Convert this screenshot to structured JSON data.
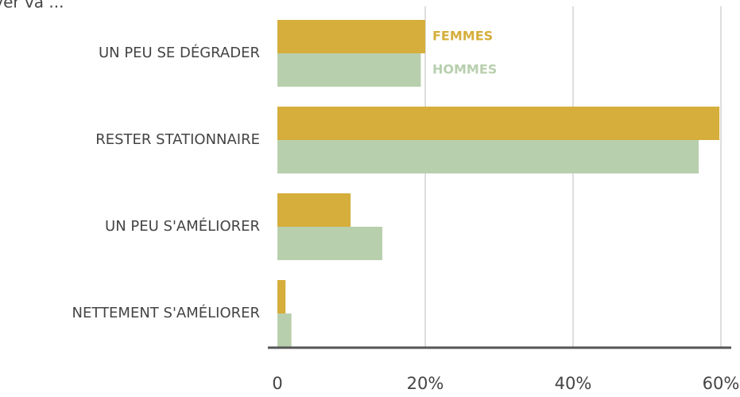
{
  "chart_data": {
    "type": "bar",
    "orientation": "horizontal",
    "title": "oyer va ...",
    "categories": [
      "UN PEU SE DÉGRADER",
      "RESTER STATIONNAIRE",
      "UN PEU S'AMÉLIORER",
      "NETTEMENT S'AMÉLIORER"
    ],
    "series": [
      {
        "name": "FEMMES",
        "color": "#d5ae3b",
        "values": [
          20,
          59.8,
          9.9,
          1.1
        ]
      },
      {
        "name": "HOMMES",
        "color": "#b8cfae",
        "values": [
          19.4,
          57,
          14.2,
          1.9
        ]
      }
    ],
    "xlim": [
      0,
      60
    ],
    "xticks": [
      0,
      {
        "value": 20,
        "label": "20%"
      },
      {
        "value": 40,
        "label": "40%"
      },
      {
        "value": 60,
        "label": "60%"
      }
    ],
    "grid": true,
    "legend": "inside"
  }
}
